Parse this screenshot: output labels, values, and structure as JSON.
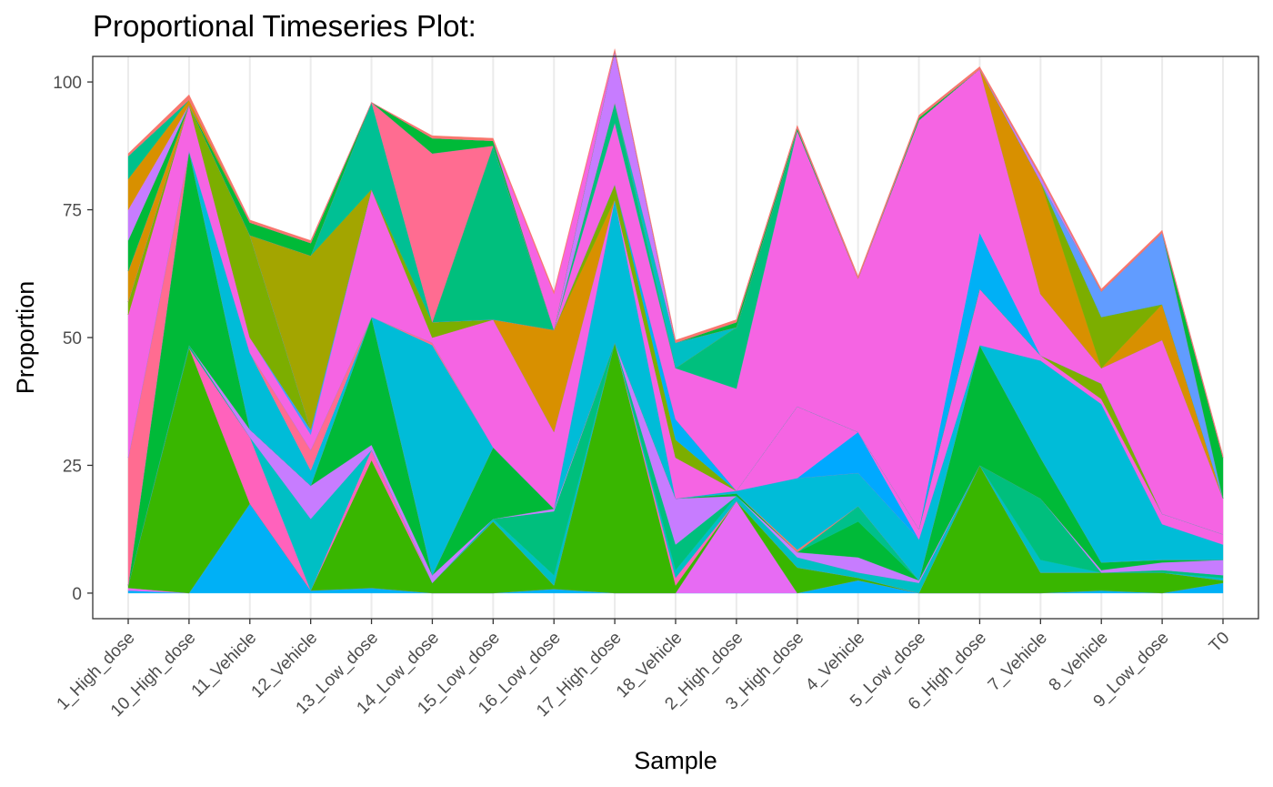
{
  "chart_data": {
    "type": "area",
    "title": "Proportional Timeseries Plot:",
    "xlabel": "Sample",
    "ylabel": "Proportion",
    "ylim": [
      -5,
      105
    ],
    "y_ticks": [
      0,
      25,
      50,
      75,
      100
    ],
    "categories": [
      "1_High_dose",
      "10_High_dose",
      "11_Vehicle",
      "12_Vehicle",
      "13_Low_dose",
      "14_Low_dose",
      "15_Low_dose",
      "16_Low_dose",
      "17_High_dose",
      "18_Vehicle",
      "2_High_dose",
      "3_High_dose",
      "4_Vehicle",
      "5_Low_dose",
      "6_High_dose",
      "7_Vehicle",
      "8_Vehicle",
      "9_Low_dose",
      "T0"
    ],
    "grid": true,
    "legend": "none",
    "series": [
      {
        "color": "#00B0F6",
        "values": [
          0.5,
          0,
          17.5,
          0.5,
          1,
          0,
          0,
          0.8,
          0,
          0,
          0,
          0,
          2.5,
          0,
          0,
          0,
          0.5,
          0,
          2
        ]
      },
      {
        "color": "#E76BF3",
        "values": [
          0.5,
          0,
          0,
          0,
          0,
          0,
          0,
          0,
          0,
          0,
          18,
          0,
          0,
          0,
          0,
          0,
          0,
          0,
          0
        ]
      },
      {
        "color": "#39B600",
        "values": [
          0.5,
          48,
          0,
          0,
          25,
          2,
          14,
          0.7,
          49,
          1.5,
          0,
          5,
          0.5,
          0,
          25,
          4,
          3.5,
          4,
          0.5
        ]
      },
      {
        "color": "#FF62BC",
        "values": [
          0,
          0,
          13,
          0,
          2,
          0,
          0,
          0,
          0,
          1.5,
          0,
          0,
          0,
          0,
          0,
          0,
          0,
          0,
          0
        ]
      },
      {
        "color": "#00BFC4",
        "values": [
          0,
          0,
          0,
          14,
          0,
          0,
          0.5,
          2,
          0,
          1.5,
          1,
          2,
          1,
          2,
          0,
          2.5,
          0,
          0,
          0.5
        ]
      },
      {
        "color": "#00BF7D",
        "values": [
          0,
          0.5,
          0,
          0,
          0,
          0,
          0,
          12.5,
          0,
          5,
          0,
          0,
          0,
          0,
          0,
          12,
          0,
          0.5,
          0.5
        ]
      },
      {
        "color": "#C77CFF",
        "values": [
          0,
          0,
          1.5,
          6.5,
          1,
          1.5,
          0,
          0.5,
          0,
          9,
          0,
          1,
          3,
          0.5,
          0,
          0,
          0.5,
          1.5,
          3
        ]
      },
      {
        "color": "#00BA38",
        "values": [
          0,
          38,
          0,
          0,
          25,
          0,
          14,
          0,
          0,
          0,
          0.5,
          0,
          7,
          0,
          23.5,
          8,
          1.5,
          0.5,
          0
        ]
      },
      {
        "color": "#00C08B",
        "values": [
          0,
          0,
          0,
          0,
          0,
          0,
          0,
          0,
          0,
          0,
          0,
          0,
          3,
          0,
          0,
          0,
          0,
          0,
          0
        ]
      },
      {
        "color": "#F8766D",
        "values": [
          0,
          0,
          0,
          0,
          0,
          0,
          0,
          0,
          0,
          0,
          0,
          0.5,
          0,
          0,
          0,
          0,
          0,
          0,
          0
        ]
      },
      {
        "color": "#00BCD8",
        "values": [
          0,
          0,
          15,
          3,
          0,
          45,
          0,
          0,
          28,
          0,
          0.5,
          14,
          6.5,
          8,
          0,
          19,
          31,
          7,
          3
        ]
      },
      {
        "color": "#FF6C91",
        "values": [
          25,
          0,
          0,
          4,
          0,
          0.5,
          0,
          0,
          0,
          0,
          0,
          0,
          0,
          0,
          0,
          0,
          0,
          0,
          0
        ]
      },
      {
        "color": "#00A9FF",
        "values": [
          0,
          0,
          0,
          0,
          0,
          0,
          0,
          0,
          0,
          0,
          0,
          0,
          8,
          0,
          0,
          0,
          0,
          0,
          0
        ]
      },
      {
        "color": "#F564E3",
        "values": [
          28,
          9,
          3,
          3,
          25,
          1,
          25,
          15,
          0,
          8,
          0,
          14,
          0,
          2,
          11,
          1,
          1,
          2,
          2
        ]
      },
      {
        "color": "#35A2FF",
        "values": [
          0,
          0,
          0,
          1,
          0,
          0,
          0,
          0,
          0,
          0,
          0,
          0,
          0,
          0,
          0,
          0,
          0,
          0,
          0
        ]
      },
      {
        "color": "#9590FF",
        "values": [
          0,
          0,
          0,
          0,
          0,
          0,
          0,
          0,
          0,
          0,
          0,
          0,
          0,
          0,
          0,
          0,
          0,
          0,
          0
        ]
      },
      {
        "color": "#D89000",
        "values": [
          0,
          0,
          0,
          0,
          0,
          0,
          0,
          20,
          0,
          0,
          0,
          0,
          0,
          0,
          0,
          0,
          0,
          0,
          0
        ]
      },
      {
        "color": "#7CAE00",
        "values": [
          2.5,
          0,
          20,
          0,
          0,
          3,
          0,
          0,
          3,
          3.5,
          0,
          0,
          0,
          0,
          0,
          0,
          3,
          0,
          0
        ]
      },
      {
        "color": "#00B0F6",
        "values": [
          0,
          0,
          0,
          0,
          0,
          0,
          0,
          0,
          0,
          4,
          0,
          0,
          0,
          0,
          0,
          0,
          0,
          0,
          0
        ]
      },
      {
        "color": "#F8766D",
        "values": [
          0,
          0,
          0,
          0,
          0,
          0,
          0,
          0,
          0,
          0,
          0,
          0,
          0,
          0,
          0,
          0,
          0,
          0,
          0
        ]
      },
      {
        "color": "#E76BF3",
        "values": [
          0,
          0,
          0,
          0,
          0,
          0,
          0,
          0,
          0,
          0,
          0,
          0,
          0,
          0,
          0,
          0,
          0,
          0,
          0
        ]
      },
      {
        "color": "#FF62BC",
        "values": [
          0,
          0,
          0,
          0,
          0,
          0,
          0,
          0,
          0,
          0,
          0,
          0,
          0,
          0,
          0,
          0,
          0,
          0,
          0
        ]
      },
      {
        "color": "#A3A500",
        "values": [
          0,
          0,
          0,
          0,
          0,
          0,
          0,
          0,
          0,
          0,
          0,
          0,
          0,
          0,
          0,
          0,
          0,
          0,
          0
        ]
      },
      {
        "color": "#00B0F6",
        "values": [
          0,
          0,
          0,
          0,
          0,
          0,
          0,
          0,
          0,
          0,
          0,
          0,
          0,
          0,
          11,
          0,
          0,
          0,
          0
        ]
      },
      {
        "color": "#F564E3",
        "values": [
          0,
          0,
          0,
          0,
          0,
          0,
          0,
          0,
          12,
          10,
          20,
          54,
          30,
          80,
          32,
          12,
          3,
          34,
          7
        ]
      },
      {
        "color": "#00BF7D",
        "values": [
          0,
          0,
          0,
          0,
          0,
          0,
          34,
          0,
          4,
          0,
          12,
          0,
          0,
          0,
          0,
          0,
          0,
          0,
          0
        ]
      },
      {
        "color": "#C77CFF",
        "values": [
          0,
          0,
          0,
          0,
          0,
          0,
          0,
          0,
          0,
          0,
          0,
          0,
          0,
          0,
          0,
          0,
          0,
          0,
          0
        ]
      },
      {
        "color": "#D89000",
        "values": [
          6,
          0,
          0,
          0,
          0,
          0,
          0,
          0,
          0,
          0,
          0,
          0,
          0,
          0,
          0,
          22,
          0,
          7,
          0
        ]
      },
      {
        "color": "#7CAE00",
        "values": [
          0,
          0,
          0,
          0,
          0,
          0,
          0,
          0,
          0,
          0,
          0,
          0,
          0,
          0,
          0,
          0,
          10,
          0,
          0
        ]
      },
      {
        "color": "#00BFC4",
        "values": [
          0,
          0,
          0,
          0,
          0,
          0,
          0,
          0,
          0,
          5,
          0,
          0,
          0,
          0,
          0,
          0,
          0,
          0,
          0
        ]
      },
      {
        "color": "#619CFF",
        "values": [
          0,
          0,
          0,
          0,
          0,
          0,
          0,
          0,
          0,
          0,
          0,
          0,
          0,
          0,
          0,
          0,
          5,
          14,
          0
        ]
      },
      {
        "color": "#A3A500",
        "values": [
          0,
          0,
          0,
          34,
          0,
          0,
          0,
          0,
          0,
          0,
          0,
          0,
          0,
          0,
          0,
          0,
          0,
          0,
          0
        ]
      },
      {
        "color": "#00C094",
        "values": [
          0,
          0,
          0,
          0,
          17,
          0,
          0,
          0,
          0,
          0,
          0,
          0,
          0,
          0,
          0,
          0,
          0,
          0,
          0
        ]
      },
      {
        "color": "#FF6C91",
        "values": [
          0,
          0,
          0,
          0,
          0,
          33,
          0,
          0,
          0,
          0,
          0,
          0,
          0,
          0,
          0,
          0,
          0,
          0,
          0
        ]
      },
      {
        "color": "#C77CFF",
        "values": [
          0,
          0,
          0,
          0,
          0,
          0,
          0,
          0,
          10,
          0,
          0,
          0,
          0,
          0,
          0,
          0,
          0,
          0,
          0
        ]
      },
      {
        "color": "#00BA38",
        "values": [
          6,
          0,
          2.5,
          2.5,
          0,
          3,
          1,
          0,
          0,
          0,
          1,
          0.5,
          0,
          0.5,
          0,
          0,
          0,
          0,
          8
        ]
      },
      {
        "color": "#C77CFF",
        "values": [
          6,
          0,
          0,
          0,
          0,
          0,
          0,
          0,
          0,
          0,
          0,
          0,
          0,
          0,
          0,
          1,
          0,
          0,
          0
        ]
      },
      {
        "color": "#D89000",
        "values": [
          6,
          1,
          0,
          0,
          0,
          0,
          0,
          0,
          0,
          0,
          0,
          0,
          0,
          0,
          0,
          0,
          0,
          0,
          0
        ]
      },
      {
        "color": "#00C08B",
        "values": [
          4.5,
          0,
          0,
          0,
          0,
          0,
          0,
          0,
          0,
          0,
          0,
          0,
          0,
          0,
          0,
          0,
          0,
          0,
          0
        ]
      },
      {
        "color": "#F564E3",
        "values": [
          0,
          0,
          0,
          0,
          0,
          0,
          0,
          7,
          0,
          0,
          0,
          0,
          0,
          0,
          0,
          0,
          0,
          0,
          0
        ]
      },
      {
        "color": "#F8766D",
        "values": [
          0.5,
          1,
          0.5,
          0.5,
          0,
          0.5,
          0.5,
          0.5,
          0.5,
          0.5,
          0.5,
          0.5,
          0.5,
          0.5,
          0.5,
          0.5,
          0.5,
          0.5,
          0.5
        ]
      }
    ]
  }
}
